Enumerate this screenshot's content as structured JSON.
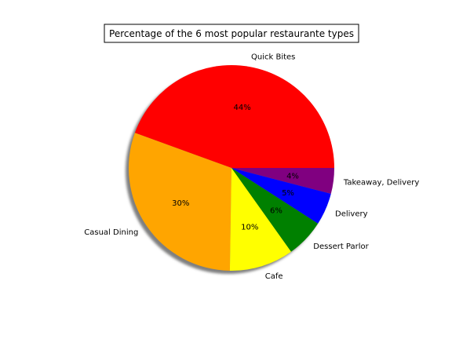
{
  "chart_data": {
    "type": "pie",
    "title": "Percentage of the 6 most popular restaurante types",
    "shadow": true,
    "start_angle_deg": 0,
    "direction": "counterclockwise",
    "slices": [
      {
        "label": "Quick Bites",
        "value": 44,
        "pct_label": "44%",
        "color": "#ff0000"
      },
      {
        "label": "Casual Dining",
        "value": 30,
        "pct_label": "30%",
        "color": "#ffa500"
      },
      {
        "label": "Cafe",
        "value": 10,
        "pct_label": "10%",
        "color": "#ffff00"
      },
      {
        "label": "Dessert Parlor",
        "value": 6,
        "pct_label": "6%",
        "color": "#008000"
      },
      {
        "label": "Delivery",
        "value": 5,
        "pct_label": "5%",
        "color": "#0000ff"
      },
      {
        "label": "Takeaway, Delivery",
        "value": 4,
        "pct_label": "4%",
        "color": "#800080"
      }
    ]
  }
}
